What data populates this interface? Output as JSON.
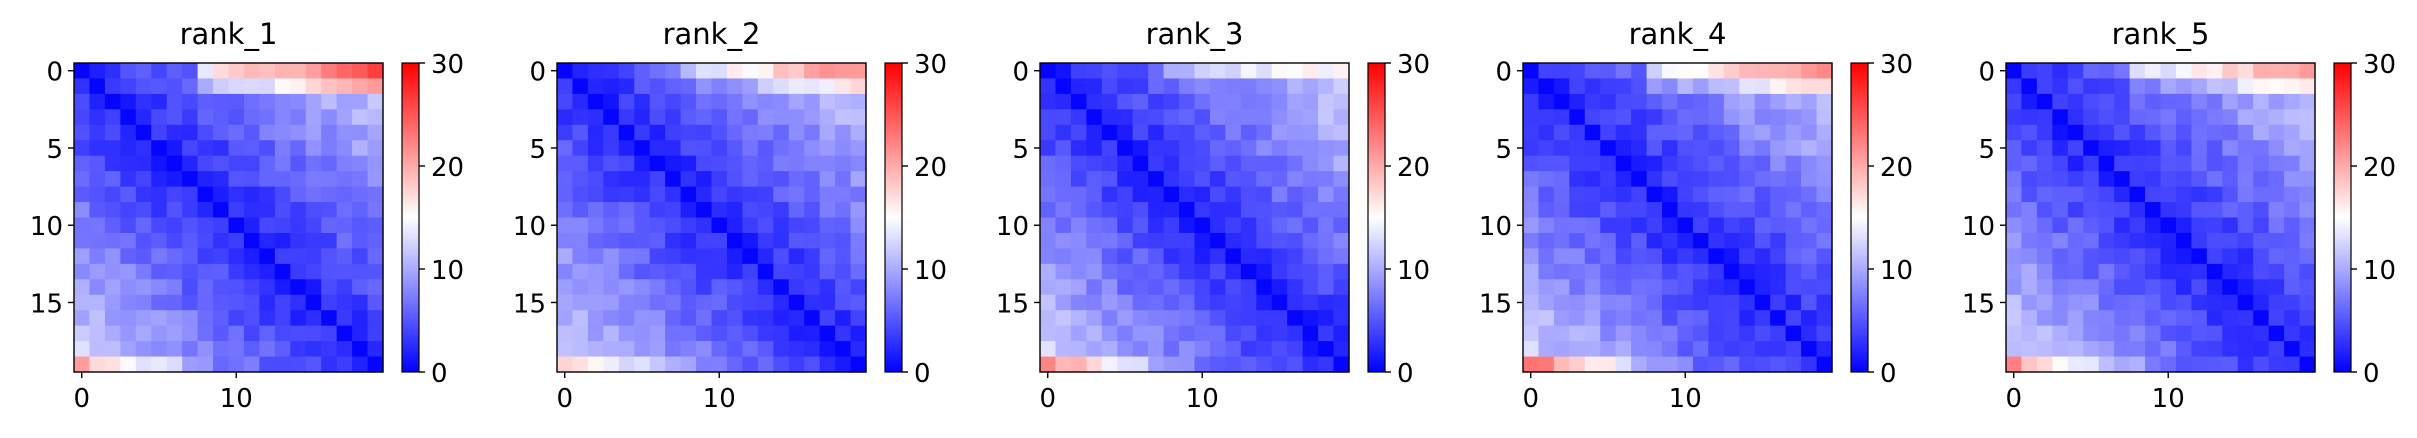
{
  "colors": {
    "colormap": "bwr",
    "low": "#0000ff",
    "mid": "#ffffff",
    "high": "#ff0000",
    "axis": "#000000",
    "background": "#ffffff"
  },
  "chart_data": [
    {
      "type": "heatmap",
      "title": "rank_1",
      "grid_size": 20,
      "x_ticks": [
        "0",
        "10"
      ],
      "y_ticks": [
        "0",
        "5",
        "10",
        "15"
      ],
      "colorbar": {
        "range": [
          0,
          30
        ],
        "ticks": [
          "0",
          "10",
          "20",
          "30"
        ]
      },
      "edge_near": 19,
      "edge_far": 25,
      "bottom_row": 20,
      "bottom_row_far": 14
    },
    {
      "type": "heatmap",
      "title": "rank_2",
      "grid_size": 20,
      "x_ticks": [
        "0",
        "10"
      ],
      "y_ticks": [
        "0",
        "5",
        "10",
        "15"
      ],
      "colorbar": {
        "range": [
          0,
          30
        ],
        "ticks": [
          "0",
          "10",
          "20",
          "30"
        ]
      },
      "edge_near": 16,
      "edge_far": 22,
      "bottom_row": 19,
      "bottom_row_far": 12
    },
    {
      "type": "heatmap",
      "title": "rank_3",
      "grid_size": 20,
      "x_ticks": [
        "0",
        "10"
      ],
      "y_ticks": [
        "0",
        "5",
        "10",
        "15"
      ],
      "colorbar": {
        "range": [
          0,
          30
        ],
        "ticks": [
          "0",
          "10",
          "20",
          "30"
        ]
      },
      "edge_near": 15,
      "edge_far": 16,
      "bottom_row": 22,
      "bottom_row_far": 12
    },
    {
      "type": "heatmap",
      "title": "rank_4",
      "grid_size": 20,
      "x_ticks": [
        "0",
        "10"
      ],
      "y_ticks": [
        "0",
        "5",
        "10",
        "15"
      ],
      "colorbar": {
        "range": [
          0,
          30
        ],
        "ticks": [
          "0",
          "10",
          "20",
          "30"
        ]
      },
      "edge_near": 17,
      "edge_far": 22,
      "bottom_row": 24,
      "bottom_row_far": 13
    },
    {
      "type": "heatmap",
      "title": "rank_5",
      "grid_size": 20,
      "x_ticks": [
        "0",
        "10"
      ],
      "y_ticks": [
        "0",
        "5",
        "10",
        "15"
      ],
      "colorbar": {
        "range": [
          0,
          30
        ],
        "ticks": [
          "0",
          "10",
          "20",
          "30"
        ]
      },
      "edge_near": 16,
      "edge_far": 22,
      "bottom_row": 21,
      "bottom_row_far": 12
    }
  ]
}
